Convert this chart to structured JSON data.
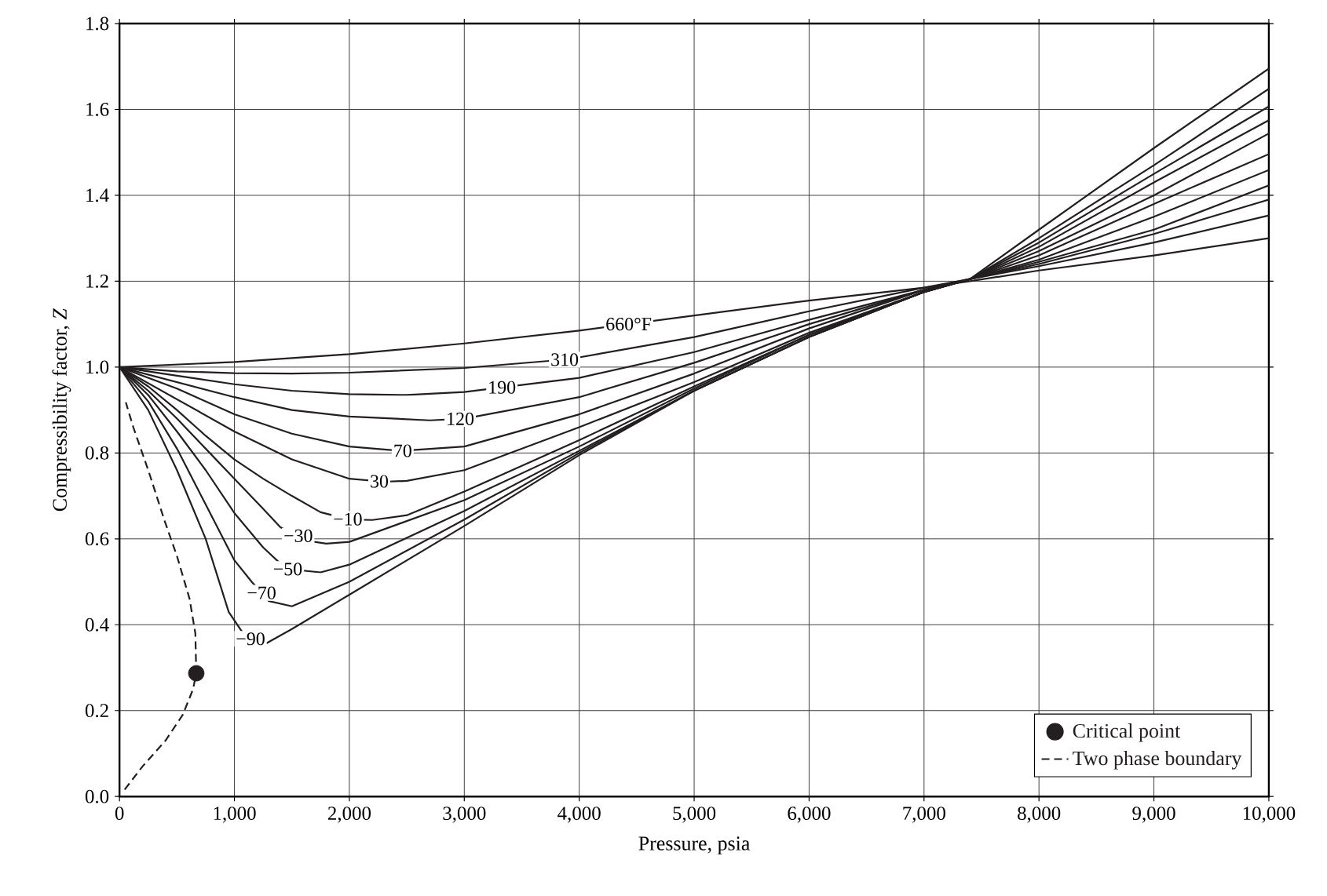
{
  "chart_data": {
    "type": "line",
    "xlabel": "Pressure, psia",
    "ylabel": "Compressibility factor, *Z*",
    "xlim": [
      0,
      10000
    ],
    "ylim": [
      0,
      1.8
    ],
    "xticks": [
      0,
      {
        "value": 1000,
        "label": "1,000"
      },
      {
        "value": 2000,
        "label": "2,000"
      },
      {
        "value": 3000,
        "label": "3,000"
      },
      {
        "value": 4000,
        "label": "4,000"
      },
      {
        "value": 5000,
        "label": "5,000"
      },
      {
        "value": 6000,
        "label": "6,000"
      },
      {
        "value": 7000,
        "label": "7,000"
      },
      {
        "value": 8000,
        "label": "8,000"
      },
      {
        "value": 9000,
        "label": "9,000"
      },
      {
        "value": 10000,
        "label": "10,000"
      }
    ],
    "yticks": [
      {
        "value": 0,
        "label": "0.0"
      },
      {
        "value": 0.2,
        "label": "0.2"
      },
      {
        "value": 0.4,
        "label": "0.4"
      },
      {
        "value": 0.6,
        "label": "0.6"
      },
      {
        "value": 0.8,
        "label": "0.8"
      },
      {
        "value": 1.0,
        "label": "1.0"
      },
      {
        "value": 1.2,
        "label": "1.2"
      },
      {
        "value": 1.4,
        "label": "1.4"
      },
      {
        "value": 1.6,
        "label": "1.6"
      },
      {
        "value": 1.8,
        "label": "1.8"
      }
    ],
    "grid": true,
    "legend": "bottom right",
    "series": [
      {
        "name": "660°F",
        "color": "#231f20",
        "marker": "none",
        "line_style": "solid",
        "x": [
          0,
          1000,
          2000,
          3000,
          4000,
          5000,
          6000,
          7000,
          7400,
          8000,
          9000,
          10000
        ],
        "values": [
          1.0,
          1.012,
          1.03,
          1.055,
          1.085,
          1.12,
          1.155,
          1.185,
          1.2,
          1.225,
          1.26,
          1.3
        ]
      },
      {
        "name": "310",
        "color": "#231f20",
        "marker": "none",
        "line_style": "solid",
        "x": [
          0,
          500,
          1000,
          1500,
          2000,
          3000,
          3900,
          5000,
          6000,
          7000,
          7400,
          8000,
          9000,
          10000
        ],
        "values": [
          1.0,
          0.99,
          0.986,
          0.985,
          0.987,
          0.998,
          1.018,
          1.07,
          1.13,
          1.185,
          1.205,
          1.235,
          1.29,
          1.353
        ]
      },
      {
        "name": "190",
        "color": "#231f20",
        "marker": "none",
        "line_style": "solid",
        "x": [
          0,
          500,
          1000,
          1500,
          2000,
          2500,
          3000,
          4000,
          5000,
          6000,
          7000,
          7400,
          8000,
          9000,
          10000
        ],
        "values": [
          1.0,
          0.98,
          0.96,
          0.945,
          0.937,
          0.935,
          0.942,
          0.975,
          1.035,
          1.11,
          1.18,
          1.205,
          1.24,
          1.31,
          1.39
        ]
      },
      {
        "name": "120",
        "color": "#231f20",
        "marker": "none",
        "line_style": "solid",
        "x": [
          0,
          500,
          1000,
          1500,
          2000,
          2700,
          3000,
          4000,
          5000,
          6000,
          7000,
          7400,
          8000,
          9000,
          10000
        ],
        "values": [
          1.0,
          0.965,
          0.93,
          0.9,
          0.885,
          0.876,
          0.88,
          0.93,
          1.01,
          1.1,
          1.18,
          1.205,
          1.245,
          1.32,
          1.423
        ]
      },
      {
        "name": "70",
        "color": "#231f20",
        "marker": "none",
        "line_style": "solid",
        "x": [
          0,
          500,
          1000,
          1500,
          2000,
          2450,
          3000,
          4000,
          5000,
          6000,
          7000,
          7400,
          8000,
          9000,
          10000
        ],
        "values": [
          1.0,
          0.95,
          0.89,
          0.845,
          0.815,
          0.805,
          0.815,
          0.89,
          0.985,
          1.09,
          1.18,
          1.205,
          1.25,
          1.35,
          1.459
        ]
      },
      {
        "name": "30",
        "color": "#231f20",
        "marker": "none",
        "line_style": "solid",
        "x": [
          0,
          500,
          1000,
          1500,
          2000,
          2300,
          2500,
          3000,
          4000,
          5000,
          6000,
          7000,
          7400,
          8000,
          9000,
          10000
        ],
        "values": [
          1.0,
          0.925,
          0.85,
          0.785,
          0.74,
          0.733,
          0.735,
          0.76,
          0.86,
          0.965,
          1.08,
          1.175,
          1.205,
          1.26,
          1.38,
          1.496
        ]
      },
      {
        "name": "−10",
        "color": "#231f20",
        "marker": "none",
        "line_style": "solid",
        "x": [
          0,
          250,
          500,
          750,
          1000,
          1250,
          1500,
          1750,
          2000,
          2200,
          2500,
          3000,
          4000,
          5000,
          6000,
          7000,
          7400,
          8000,
          9000,
          10000
        ],
        "values": [
          1.0,
          0.955,
          0.9,
          0.84,
          0.785,
          0.74,
          0.7,
          0.662,
          0.645,
          0.644,
          0.655,
          0.71,
          0.83,
          0.955,
          1.075,
          1.175,
          1.205,
          1.27,
          1.4,
          1.544
        ]
      },
      {
        "name": "−30",
        "color": "#231f20",
        "marker": "none",
        "line_style": "solid",
        "x": [
          0,
          250,
          500,
          750,
          1000,
          1250,
          1400,
          1650,
          1800,
          2000,
          3000,
          4000,
          5000,
          6000,
          7000,
          7400,
          8000,
          9000,
          10000
        ],
        "values": [
          1.0,
          0.945,
          0.88,
          0.81,
          0.74,
          0.67,
          0.627,
          0.595,
          0.589,
          0.593,
          0.69,
          0.815,
          0.95,
          1.075,
          1.175,
          1.205,
          1.28,
          1.43,
          1.575
        ]
      },
      {
        "name": "−50",
        "color": "#231f20",
        "marker": "none",
        "line_style": "solid",
        "x": [
          0,
          250,
          500,
          750,
          1000,
          1250,
          1450,
          1750,
          2000,
          3000,
          4000,
          5000,
          6000,
          7000,
          7400,
          8000,
          9000,
          10000
        ],
        "values": [
          1.0,
          0.935,
          0.85,
          0.76,
          0.66,
          0.58,
          0.53,
          0.522,
          0.54,
          0.665,
          0.805,
          0.945,
          1.07,
          1.175,
          1.205,
          1.29,
          1.45,
          1.607
        ]
      },
      {
        "name": "−70",
        "color": "#231f20",
        "marker": "none",
        "line_style": "solid",
        "x": [
          0,
          250,
          500,
          750,
          1000,
          1150,
          1300,
          1500,
          2000,
          3000,
          4000,
          5000,
          6000,
          7000,
          7400,
          8000,
          9000,
          10000
        ],
        "values": [
          1.0,
          0.92,
          0.81,
          0.68,
          0.55,
          0.5,
          0.455,
          0.443,
          0.5,
          0.645,
          0.8,
          0.945,
          1.07,
          1.175,
          1.205,
          1.3,
          1.47,
          1.648
        ]
      },
      {
        "name": "−90",
        "color": "#231f20",
        "marker": "none",
        "line_style": "solid",
        "x": [
          0,
          250,
          500,
          750,
          950,
          1100,
          1280,
          1500,
          2000,
          3000,
          4000,
          5000,
          6000,
          7000,
          7400,
          8000,
          9000,
          10000
        ],
        "values": [
          1.0,
          0.9,
          0.76,
          0.6,
          0.43,
          0.37,
          0.357,
          0.39,
          0.47,
          0.63,
          0.795,
          0.945,
          1.07,
          1.175,
          1.205,
          1.32,
          1.51,
          1.695
        ]
      },
      {
        "name": "Critical point",
        "type": "scatter",
        "color": "#231f20",
        "marker": "circle",
        "x": [
          668
        ],
        "values": [
          0.287
        ]
      },
      {
        "name": "Two phase boundary",
        "color": "#231f20",
        "marker": "none",
        "line_style": "dashed",
        "x": [
          45,
          200,
          400,
          550,
          640,
          668,
          660,
          610,
          500,
          395,
          250,
          120,
          55
        ],
        "values": [
          0.016,
          0.07,
          0.13,
          0.19,
          0.25,
          0.287,
          0.38,
          0.46,
          0.56,
          0.64,
          0.76,
          0.86,
          0.918
        ]
      }
    ]
  }
}
